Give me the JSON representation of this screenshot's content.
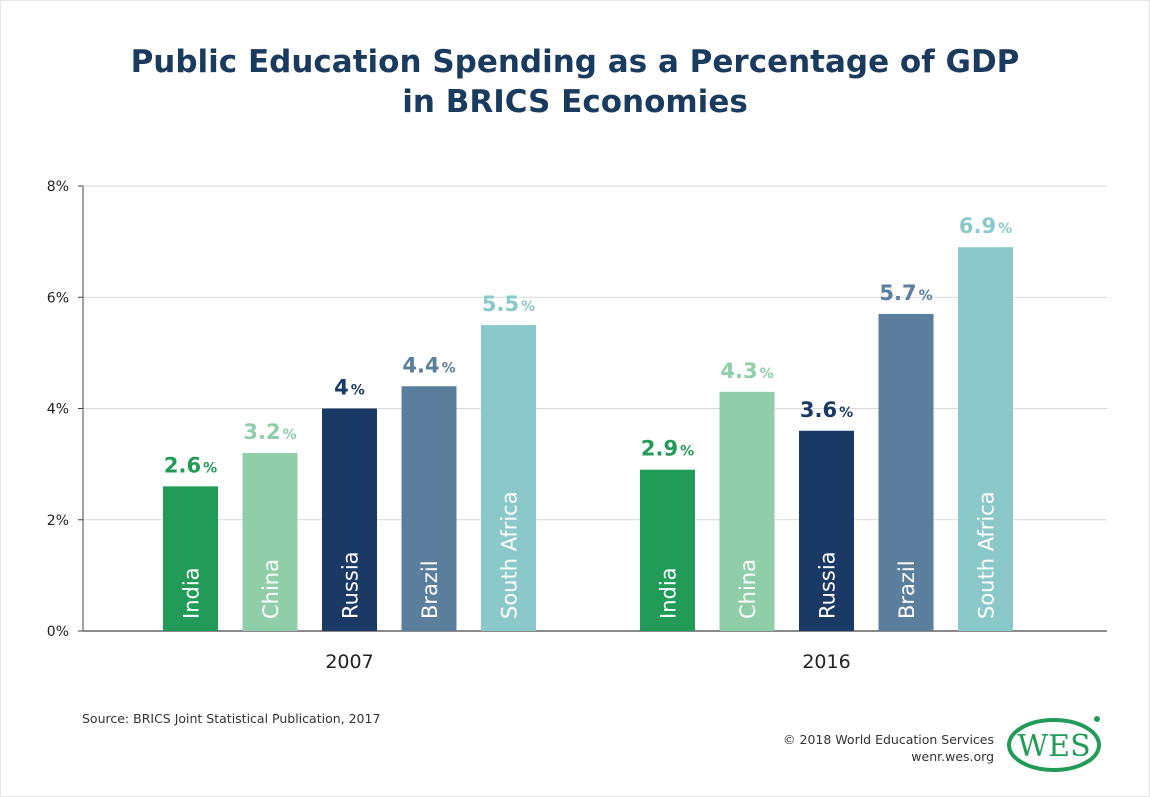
{
  "title_line1": "Public Education Spending as a Percentage of GDP",
  "title_line2": "in BRICS Economies",
  "source": "Source: BRICS Joint Statistical Publication, 2017",
  "credit_line1": "© 2018 World Education Services",
  "credit_line2": "wenr.wes.org",
  "logo_text": "WES",
  "colors": {
    "India": "#229a58",
    "China": "#8fcea9",
    "Russia": "#1a3a65",
    "Brazil": "#5b7e9d",
    "South Africa": "#8bc8c9",
    "title": "#1a3a5e"
  },
  "chart_data": {
    "type": "bar",
    "categories": [
      "2007",
      "2016"
    ],
    "series": [
      {
        "name": "India",
        "values": [
          2.6,
          2.9
        ]
      },
      {
        "name": "China",
        "values": [
          3.2,
          4.3
        ]
      },
      {
        "name": "Russia",
        "values": [
          4,
          3.6
        ]
      },
      {
        "name": "Brazil",
        "values": [
          4.4,
          5.7
        ]
      },
      {
        "name": "South Africa",
        "values": [
          5.5,
          6.9
        ]
      }
    ],
    "data_labels": [
      [
        "2.6",
        "3.2",
        "4",
        "4.4",
        "5.5"
      ],
      [
        "2.9",
        "4.3",
        "3.6",
        "5.7",
        "6.9"
      ]
    ],
    "unit_suffix": "%",
    "y_ticks": [
      "0%",
      "2%",
      "4%",
      "6%",
      "8%"
    ],
    "ylim": [
      0,
      8
    ],
    "grid": true,
    "title": "Public Education Spending as a Percentage of GDP in BRICS Economies"
  }
}
